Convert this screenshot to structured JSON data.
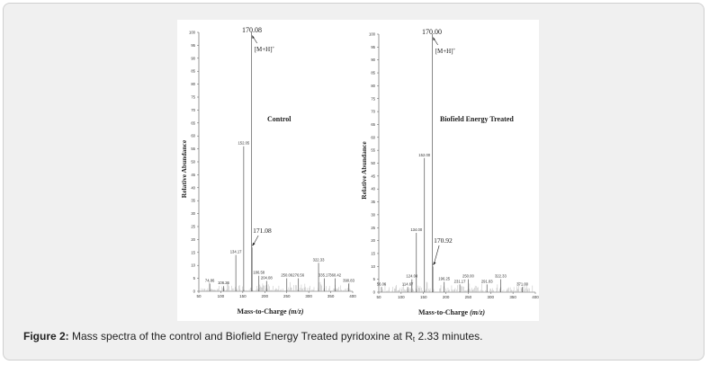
{
  "caption": {
    "label": "Figure 2:",
    "text_before": "Mass spectra of the control and Biofield Energy Treated pyridoxine at R",
    "subscript": "t",
    "text_after": "2.33 minutes."
  },
  "chart_data": [
    {
      "type": "bar",
      "title": "Control",
      "xlabel": "Mass-to-Charge (m/z)",
      "ylabel": "Relative Abundance",
      "xlim": [
        50,
        400
      ],
      "ylim": [
        0,
        100
      ],
      "x_ticks": [
        50,
        100,
        150,
        200,
        250,
        300,
        350,
        400
      ],
      "y_ticks": [
        0,
        5,
        10,
        15,
        20,
        25,
        30,
        35,
        40,
        45,
        50,
        55,
        60,
        65,
        70,
        75,
        80,
        85,
        90,
        95,
        100
      ],
      "peaks": [
        {
          "mz": 74.86,
          "intensity": 3
        },
        {
          "mz": 106.26,
          "intensity": 2
        },
        {
          "mz": 134.17,
          "intensity": 14
        },
        {
          "mz": 152.05,
          "intensity": 56
        },
        {
          "mz": 170.08,
          "intensity": 100
        },
        {
          "mz": 171.08,
          "intensity": 17
        },
        {
          "mz": 186.58,
          "intensity": 6
        },
        {
          "mz": 204.08,
          "intensity": 4
        },
        {
          "mz": 250.06,
          "intensity": 5
        },
        {
          "mz": 276.56,
          "intensity": 5
        },
        {
          "mz": 322.33,
          "intensity": 11
        },
        {
          "mz": 335.17,
          "intensity": 5
        },
        {
          "mz": 360.42,
          "intensity": 5
        },
        {
          "mz": 390.83,
          "intensity": 3
        }
      ],
      "annotations": [
        {
          "text": "[M+H]",
          "superscript": "+",
          "mz": 170.08
        },
        {
          "text": "171.08",
          "mz": 171.08
        }
      ]
    },
    {
      "type": "bar",
      "title": "Biofield Energy Treated",
      "xlabel": "Mass-to-Charge (m/z)",
      "ylabel": "Relative Abundance",
      "xlim": [
        50,
        400
      ],
      "ylim": [
        0,
        100
      ],
      "x_ticks": [
        50,
        100,
        150,
        200,
        250,
        300,
        350,
        400
      ],
      "y_ticks": [
        0,
        5,
        10,
        15,
        20,
        25,
        30,
        35,
        40,
        45,
        50,
        55,
        60,
        65,
        70,
        75,
        80,
        85,
        90,
        95,
        100
      ],
      "peaks": [
        {
          "mz": 56.06,
          "intensity": 2
        },
        {
          "mz": 114.67,
          "intensity": 2
        },
        {
          "mz": 124.08,
          "intensity": 5
        },
        {
          "mz": 134.0,
          "intensity": 23
        },
        {
          "mz": 152.0,
          "intensity": 52
        },
        {
          "mz": 170.0,
          "intensity": 100
        },
        {
          "mz": 170.92,
          "intensity": 10
        },
        {
          "mz": 196.25,
          "intensity": 4
        },
        {
          "mz": 231.17,
          "intensity": 3
        },
        {
          "mz": 250.0,
          "intensity": 5
        },
        {
          "mz": 291.83,
          "intensity": 3
        },
        {
          "mz": 322.33,
          "intensity": 5
        },
        {
          "mz": 371.0,
          "intensity": 2
        }
      ],
      "annotations": [
        {
          "text": "[M+H]",
          "superscript": "+",
          "mz": 170.0
        },
        {
          "text": "170.92",
          "mz": 170.92
        }
      ]
    }
  ]
}
